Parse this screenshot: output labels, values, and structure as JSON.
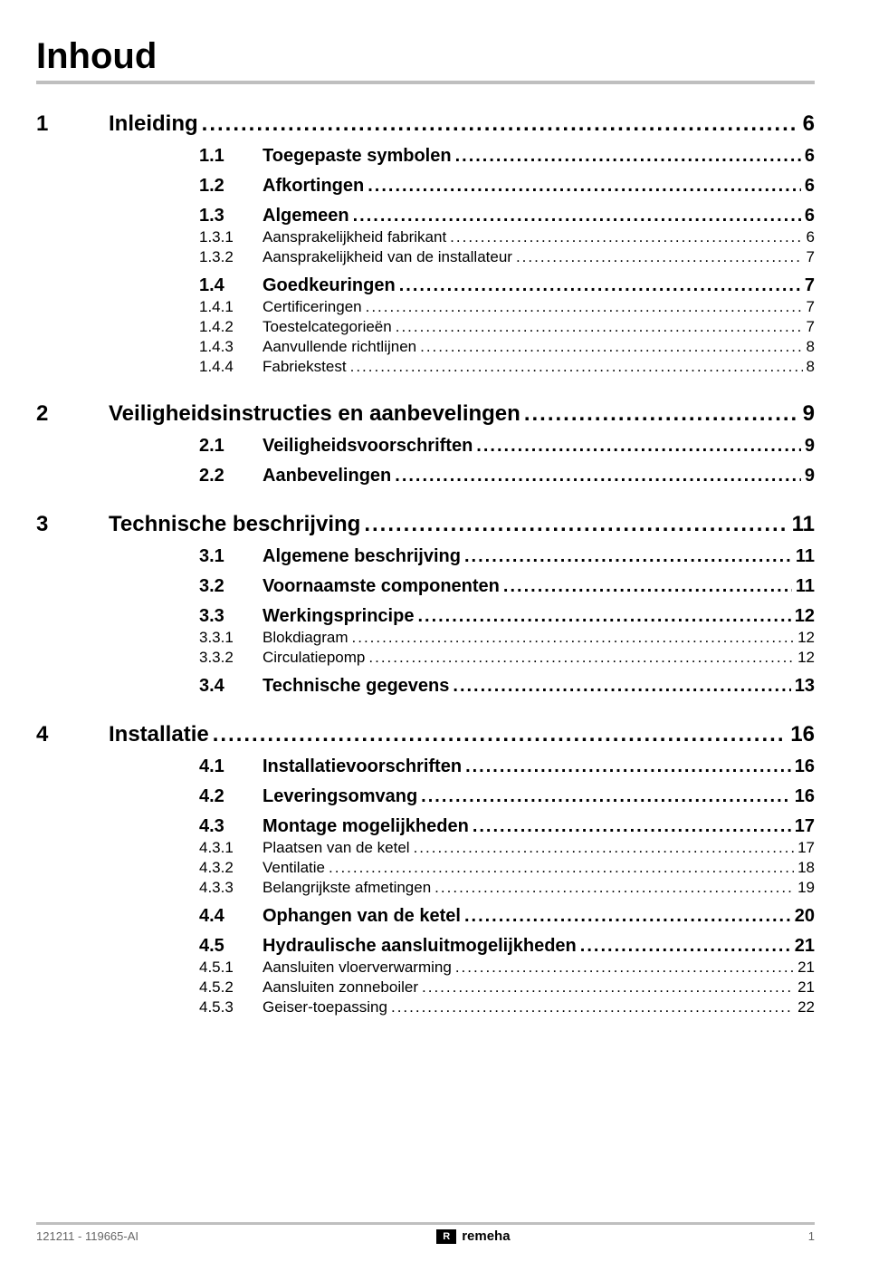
{
  "title": "Inhoud",
  "footer": {
    "doc_ref": "121211 - 119665-AI",
    "brand_mark": "R",
    "brand_name": "remeha",
    "page_number": "1"
  },
  "toc": [
    {
      "level": 1,
      "num": "1",
      "text": "Inleiding",
      "page": "6"
    },
    {
      "level": 2,
      "num": "1.1",
      "text": "Toegepaste symbolen",
      "page": "6"
    },
    {
      "level": 2,
      "num": "1.2",
      "text": "Afkortingen",
      "page": "6"
    },
    {
      "level": 2,
      "num": "1.3",
      "text": "Algemeen",
      "page": "6"
    },
    {
      "level": 3,
      "num": "1.3.1",
      "text": "Aansprakelijkheid fabrikant",
      "page": "6"
    },
    {
      "level": 3,
      "num": "1.3.2",
      "text": "Aansprakelijkheid van de installateur",
      "page": "7"
    },
    {
      "level": 2,
      "num": "1.4",
      "text": "Goedkeuringen",
      "page": "7"
    },
    {
      "level": 3,
      "num": "1.4.1",
      "text": "Certificeringen",
      "page": "7"
    },
    {
      "level": 3,
      "num": "1.4.2",
      "text": "Toestelcategorieën",
      "page": "7"
    },
    {
      "level": 3,
      "num": "1.4.3",
      "text": "Aanvullende richtlijnen",
      "page": "8"
    },
    {
      "level": 3,
      "num": "1.4.4",
      "text": "Fabriekstest",
      "page": "8"
    },
    {
      "level": 1,
      "num": "2",
      "text": "Veiligheidsinstructies en aanbevelingen",
      "page": "9"
    },
    {
      "level": 2,
      "num": "2.1",
      "text": "Veiligheidsvoorschriften",
      "page": "9"
    },
    {
      "level": 2,
      "num": "2.2",
      "text": "Aanbevelingen",
      "page": "9"
    },
    {
      "level": 1,
      "num": "3",
      "text": "Technische beschrijving",
      "page": "11"
    },
    {
      "level": 2,
      "num": "3.1",
      "text": "Algemene beschrijving",
      "page": "11"
    },
    {
      "level": 2,
      "num": "3.2",
      "text": "Voornaamste componenten",
      "page": "11"
    },
    {
      "level": 2,
      "num": "3.3",
      "text": "Werkingsprincipe",
      "page": "12"
    },
    {
      "level": 3,
      "num": "3.3.1",
      "text": "Blokdiagram",
      "page": "12"
    },
    {
      "level": 3,
      "num": "3.3.2",
      "text": "Circulatiepomp",
      "page": "12"
    },
    {
      "level": 2,
      "num": "3.4",
      "text": "Technische gegevens",
      "page": "13"
    },
    {
      "level": 1,
      "num": "4",
      "text": "Installatie",
      "page": "16"
    },
    {
      "level": 2,
      "num": "4.1",
      "text": "Installatievoorschriften",
      "page": "16"
    },
    {
      "level": 2,
      "num": "4.2",
      "text": "Leveringsomvang",
      "page": "16"
    },
    {
      "level": 2,
      "num": "4.3",
      "text": "Montage mogelijkheden",
      "page": "17"
    },
    {
      "level": 3,
      "num": "4.3.1",
      "text": "Plaatsen van de ketel",
      "page": "17"
    },
    {
      "level": 3,
      "num": "4.3.2",
      "text": "Ventilatie",
      "page": "18"
    },
    {
      "level": 3,
      "num": "4.3.3",
      "text": "Belangrijkste afmetingen",
      "page": "19"
    },
    {
      "level": 2,
      "num": "4.4",
      "text": "Ophangen van de ketel",
      "page": "20"
    },
    {
      "level": 2,
      "num": "4.5",
      "text": "Hydraulische aansluitmogelijkheden",
      "page": "21"
    },
    {
      "level": 3,
      "num": "4.5.1",
      "text": "Aansluiten vloerverwarming",
      "page": "21"
    },
    {
      "level": 3,
      "num": "4.5.2",
      "text": "Aansluiten zonneboiler",
      "page": "21"
    },
    {
      "level": 3,
      "num": "4.5.3",
      "text": "Geiser-toepassing",
      "page": "22"
    }
  ]
}
